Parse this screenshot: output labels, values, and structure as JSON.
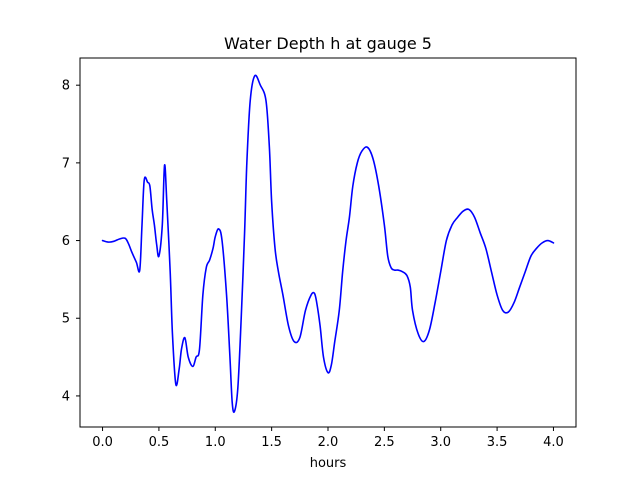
{
  "chart_data": {
    "type": "line",
    "title": "Water Depth h at gauge 5",
    "xlabel": "hours",
    "ylabel": "",
    "xlim": [
      -0.2,
      4.2
    ],
    "ylim": [
      3.6,
      8.35
    ],
    "xticks": [
      0.0,
      0.5,
      1.0,
      1.5,
      2.0,
      2.5,
      3.0,
      3.5,
      4.0
    ],
    "xtick_labels": [
      "0.0",
      "0.5",
      "1.0",
      "1.5",
      "2.0",
      "2.5",
      "3.0",
      "3.5",
      "4.0"
    ],
    "yticks": [
      4,
      5,
      6,
      7,
      8
    ],
    "ytick_labels": [
      "4",
      "5",
      "6",
      "7",
      "8"
    ],
    "grid": false,
    "series": [
      {
        "color": "#0000ff",
        "x": [
          0.0,
          0.05,
          0.1,
          0.15,
          0.2,
          0.23,
          0.26,
          0.3,
          0.33,
          0.35,
          0.37,
          0.4,
          0.42,
          0.44,
          0.46,
          0.48,
          0.5,
          0.53,
          0.55,
          0.57,
          0.6,
          0.62,
          0.65,
          0.68,
          0.7,
          0.73,
          0.76,
          0.8,
          0.83,
          0.86,
          0.89,
          0.92,
          0.95,
          0.98,
          1.0,
          1.03,
          1.06,
          1.1,
          1.13,
          1.15,
          1.17,
          1.2,
          1.23,
          1.26,
          1.28,
          1.31,
          1.35,
          1.4,
          1.45,
          1.48,
          1.5,
          1.53,
          1.56,
          1.6,
          1.65,
          1.7,
          1.75,
          1.8,
          1.85,
          1.88,
          1.9,
          1.93,
          1.96,
          2.0,
          2.03,
          2.06,
          2.1,
          2.13,
          2.16,
          2.19,
          2.22,
          2.26,
          2.3,
          2.35,
          2.4,
          2.45,
          2.5,
          2.53,
          2.56,
          2.59,
          2.62,
          2.66,
          2.7,
          2.73,
          2.75,
          2.8,
          2.85,
          2.9,
          2.95,
          3.0,
          3.05,
          3.1,
          3.15,
          3.2,
          3.25,
          3.3,
          3.35,
          3.4,
          3.45,
          3.5,
          3.55,
          3.6,
          3.65,
          3.7,
          3.75,
          3.8,
          3.85,
          3.9,
          3.95,
          4.0
        ],
        "y": [
          6.0,
          5.98,
          5.99,
          6.02,
          6.03,
          5.96,
          5.85,
          5.72,
          5.62,
          6.2,
          6.78,
          6.75,
          6.7,
          6.4,
          6.2,
          5.95,
          5.8,
          6.2,
          6.97,
          6.5,
          5.6,
          4.8,
          4.15,
          4.35,
          4.6,
          4.75,
          4.5,
          4.38,
          4.5,
          4.6,
          5.3,
          5.65,
          5.75,
          5.9,
          6.05,
          6.15,
          6.0,
          5.3,
          4.5,
          3.92,
          3.8,
          4.1,
          5.0,
          6.1,
          7.0,
          7.8,
          8.12,
          8.0,
          7.8,
          7.2,
          6.5,
          5.9,
          5.6,
          5.3,
          4.9,
          4.7,
          4.75,
          5.1,
          5.3,
          5.32,
          5.2,
          4.9,
          4.5,
          4.3,
          4.4,
          4.7,
          5.1,
          5.6,
          6.0,
          6.3,
          6.7,
          7.0,
          7.15,
          7.2,
          7.05,
          6.7,
          6.2,
          5.8,
          5.65,
          5.62,
          5.62,
          5.6,
          5.55,
          5.4,
          5.1,
          4.8,
          4.7,
          4.85,
          5.2,
          5.6,
          6.0,
          6.2,
          6.3,
          6.38,
          6.4,
          6.3,
          6.1,
          5.9,
          5.6,
          5.3,
          5.1,
          5.08,
          5.2,
          5.4,
          5.6,
          5.8,
          5.9,
          5.97,
          6.0,
          5.97
        ]
      }
    ]
  }
}
